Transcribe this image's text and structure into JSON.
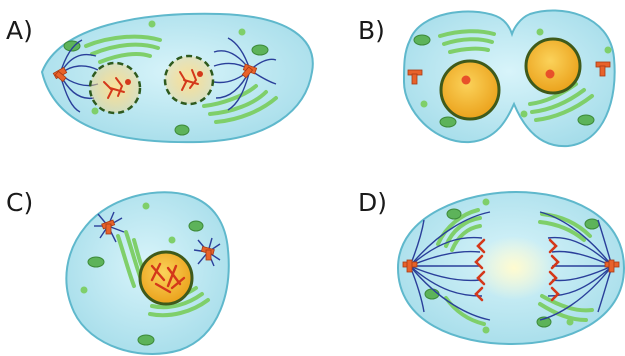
{
  "panels": [
    {
      "label": "A)"
    },
    {
      "label": "B)"
    },
    {
      "label": "C)"
    },
    {
      "label": "D)"
    }
  ],
  "colors": {
    "cytoplasm": "#b8e8f2",
    "membrane": "#5fb8cc",
    "golgi": "#7fcf6a",
    "mitochondria": "#5db35a",
    "nucleus": "#f5b42a",
    "nucleus_border": "#3f5a1a",
    "chromosome": "#d4381a",
    "centrosome": "#e8622a",
    "spindle": "#2a3f9a",
    "metaphase_glow": "#fffbd0"
  }
}
